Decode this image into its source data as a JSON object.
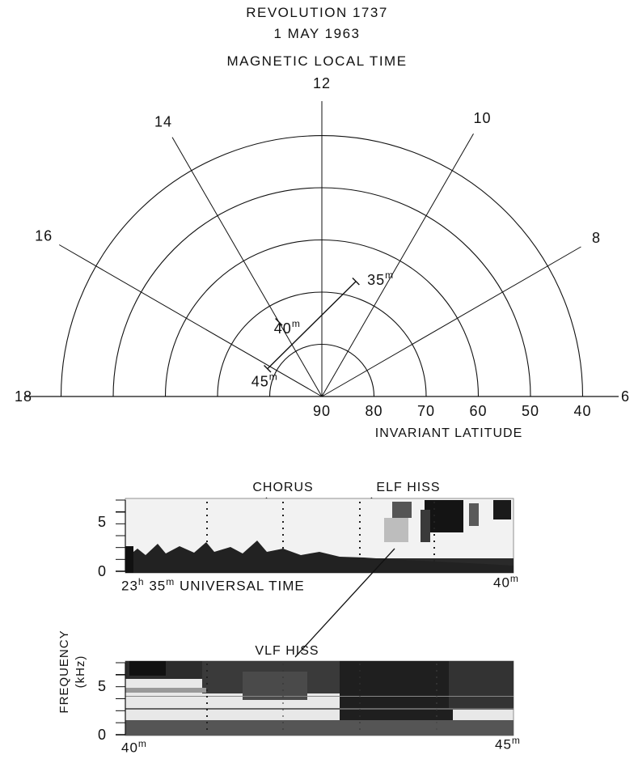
{
  "title": {
    "line1": "REVOLUTION 1737",
    "line2": "1 MAY 1963",
    "line3": "MAGNETIC LOCAL TIME"
  },
  "polar": {
    "time_labels": [
      {
        "hour": "6",
        "angle_deg": 0
      },
      {
        "hour": "8",
        "angle_deg": 30
      },
      {
        "hour": "10",
        "angle_deg": 60
      },
      {
        "hour": "12",
        "angle_deg": 90
      },
      {
        "hour": "14",
        "angle_deg": 120
      },
      {
        "hour": "16",
        "angle_deg": 150
      },
      {
        "hour": "18",
        "angle_deg": 180
      }
    ],
    "latitude_labels": [
      "90",
      "80",
      "70",
      "60",
      "50",
      "40"
    ],
    "latitude_values": [
      80,
      70,
      60,
      50,
      40
    ],
    "axis_label": "INVARIANT LATITUDE",
    "track": {
      "marks": [
        {
          "label": "35",
          "unit": "m",
          "lat": 67,
          "hour": 10.9
        },
        {
          "label": "40",
          "unit": "m",
          "lat": 73.5,
          "hour": 14.0
        },
        {
          "label": "45",
          "unit": "m",
          "lat": 78.3,
          "hour": 16.2
        }
      ]
    }
  },
  "spectrogram_top": {
    "annotations": [
      "CHORUS",
      "ELF HISS"
    ],
    "y_ticks": [
      "5",
      "0"
    ],
    "x_start": "23",
    "x_start_h_unit": "h",
    "x_start_min": "35",
    "x_start_m_unit": "m",
    "x_axis_label": "UNIVERSAL TIME",
    "x_end": "40",
    "x_end_unit": "m"
  },
  "spectrogram_bottom": {
    "annotation": "VLF HISS",
    "y_ticks": [
      "5",
      "0"
    ],
    "x_start": "40",
    "x_start_unit": "m",
    "x_end": "45",
    "x_end_unit": "m"
  },
  "y_axis": {
    "label": "FREQUENCY",
    "unit": "(kHz)"
  }
}
